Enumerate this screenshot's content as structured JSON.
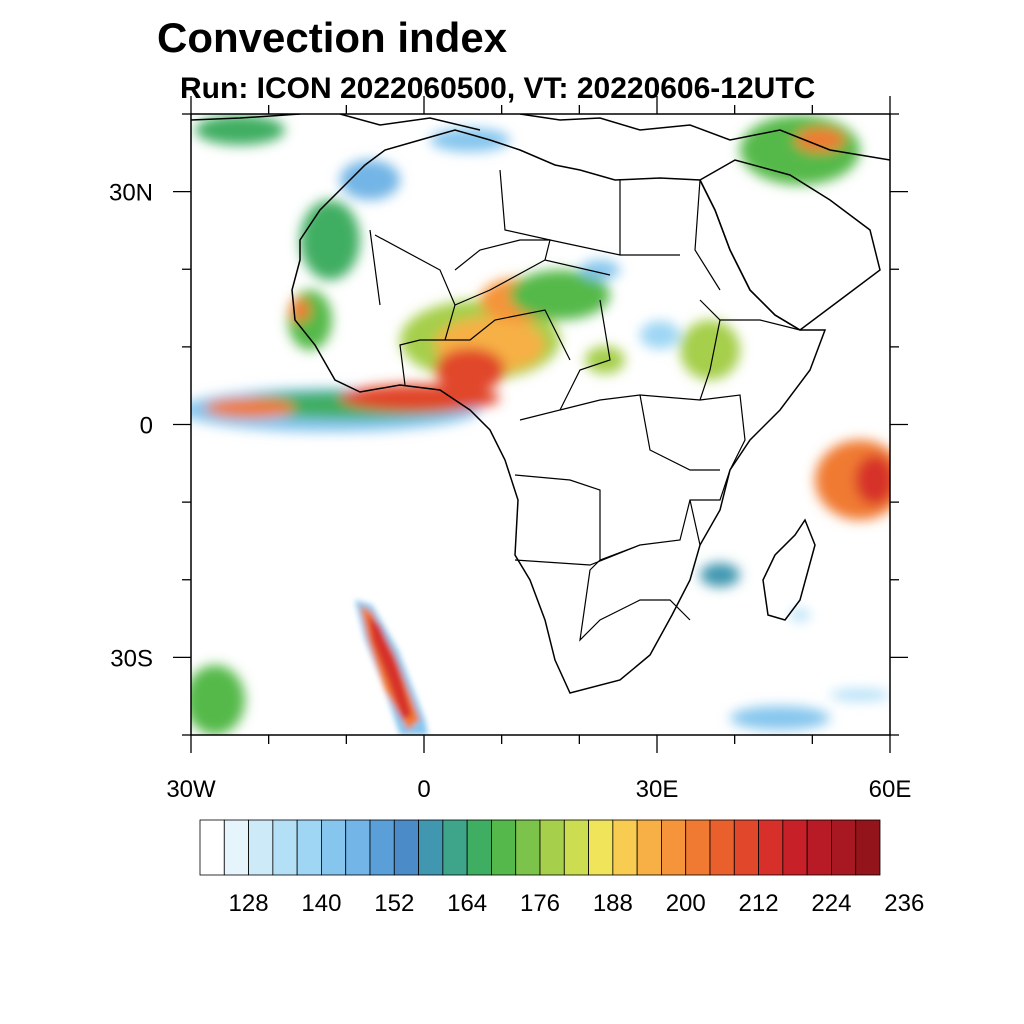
{
  "header": {
    "title": "Convection index",
    "subtitle": "Run: ICON 2022060500,  VT: 20220606-12UTC"
  },
  "map": {
    "projection": "lat-lon",
    "lon_range": [
      -30,
      60
    ],
    "lat_range": [
      -40,
      40
    ],
    "lat_ticks": [
      {
        "value": 30,
        "label": "30N"
      },
      {
        "value": 0,
        "label": "0"
      },
      {
        "value": -30,
        "label": "30S"
      }
    ],
    "lon_ticks": [
      {
        "value": -30,
        "label": "30W"
      },
      {
        "value": 0,
        "label": "0"
      },
      {
        "value": 30,
        "label": "30E"
      },
      {
        "value": 60,
        "label": "60E"
      }
    ],
    "minor_tick_step_deg": 10
  },
  "colorbar": {
    "colors": [
      "#ffffff",
      "#e6f4fc",
      "#cdeaf9",
      "#b3e0f7",
      "#9ed6f4",
      "#86c6ee",
      "#72b5e6",
      "#5b9fd8",
      "#4b8cc8",
      "#4197b0",
      "#3ea58a",
      "#3fae62",
      "#54b94a",
      "#7cc34b",
      "#a6cf4c",
      "#cddd52",
      "#f0e55a",
      "#f7cc51",
      "#f6b045",
      "#f5943a",
      "#f07a32",
      "#e9602c",
      "#e1472b",
      "#d7302b",
      "#c82028",
      "#b81a26",
      "#a81822",
      "#94141c"
    ],
    "labels": [
      "128",
      "140",
      "152",
      "164",
      "176",
      "188",
      "200",
      "212",
      "224",
      "236"
    ],
    "label_after_box": [
      2,
      5,
      8,
      11,
      14,
      17,
      20,
      23,
      26,
      29
    ]
  },
  "fields": [
    {
      "lon": 1,
      "lat": 3,
      "value": 218
    },
    {
      "lon": -8,
      "lat": 2,
      "value": 205
    },
    {
      "lon": 6,
      "lat": 10,
      "value": 212
    },
    {
      "lon": 10,
      "lat": 17,
      "value": 200
    },
    {
      "lon": 36,
      "lat": 9,
      "value": 170
    },
    {
      "lon": 22,
      "lat": 7,
      "value": 168
    },
    {
      "lon": 57,
      "lat": -7,
      "value": 222
    },
    {
      "lon": -4,
      "lat": -33,
      "value": 220
    },
    {
      "lon": -13,
      "lat": 23,
      "value": 165
    },
    {
      "lon": 46,
      "lat": 37,
      "value": 160
    }
  ]
}
